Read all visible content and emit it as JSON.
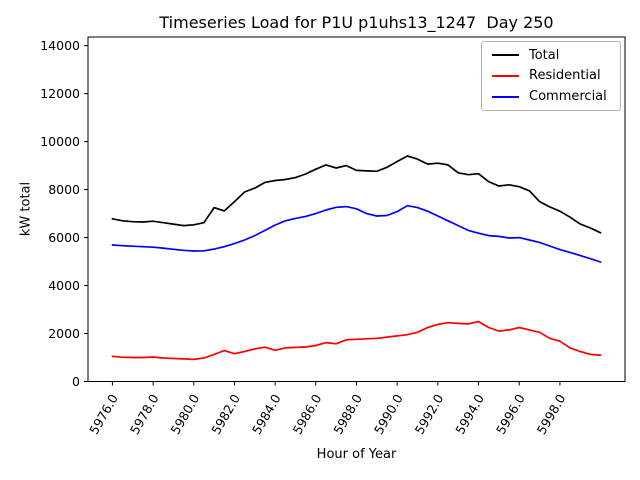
{
  "figure": {
    "background": "#ffffff"
  },
  "chart_data": {
    "type": "line",
    "title": "Timeseries Load for P1U p1uhs13_1247  Day 250",
    "xlabel": "Hour of Year",
    "ylabel": "kW total",
    "xlim": [
      5974.8,
      6001.2
    ],
    "ylim": [
      0,
      14360
    ],
    "grid": false,
    "legend_position": "upper right",
    "x_ticks": [
      5976,
      5978,
      5980,
      5982,
      5984,
      5986,
      5988,
      5990,
      5992,
      5994,
      5996,
      5998
    ],
    "x_tick_labels": [
      "5976.0",
      "5978.0",
      "5980.0",
      "5982.0",
      "5984.0",
      "5986.0",
      "5988.0",
      "5990.0",
      "5992.0",
      "5994.0",
      "5996.0",
      "5998.0"
    ],
    "x_tick_rotation_deg": 60,
    "y_ticks": [
      0,
      2000,
      4000,
      6000,
      8000,
      10000,
      12000,
      14000
    ],
    "y_tick_labels": [
      "0",
      "2000",
      "4000",
      "6000",
      "8000",
      "10000",
      "12000",
      "14000"
    ],
    "x": [
      5976.0,
      5976.5,
      5977.0,
      5977.5,
      5978.0,
      5978.5,
      5979.0,
      5979.5,
      5980.0,
      5980.5,
      5981.0,
      5981.5,
      5982.0,
      5982.5,
      5983.0,
      5983.5,
      5984.0,
      5984.5,
      5985.0,
      5985.5,
      5986.0,
      5986.5,
      5987.0,
      5987.5,
      5988.0,
      5988.5,
      5989.0,
      5989.5,
      5990.0,
      5990.5,
      5991.0,
      5991.5,
      5992.0,
      5992.5,
      5993.0,
      5993.5,
      5994.0,
      5994.5,
      5995.0,
      5995.5,
      5996.0,
      5996.5,
      5997.0,
      5997.5,
      5998.0,
      5998.5,
      5999.0,
      5999.5,
      6000.0
    ],
    "series": [
      {
        "name": "Total",
        "color": "#000000",
        "values": [
          6780,
          6700,
          6660,
          6650,
          6680,
          6620,
          6560,
          6500,
          6530,
          6620,
          7250,
          7110,
          7500,
          7900,
          8060,
          8300,
          8380,
          8420,
          8500,
          8650,
          8850,
          9030,
          8900,
          9000,
          8800,
          8780,
          8760,
          8930,
          9170,
          9400,
          9270,
          9060,
          9100,
          9030,
          8700,
          8620,
          8660,
          8330,
          8150,
          8200,
          8120,
          7950,
          7500,
          7280,
          7100,
          6850,
          6560,
          6400,
          6200
        ]
      },
      {
        "name": "Residential",
        "color": "#ff0000",
        "values": [
          1050,
          1010,
          1000,
          1000,
          1020,
          980,
          960,
          940,
          920,
          980,
          1130,
          1290,
          1160,
          1250,
          1360,
          1430,
          1300,
          1400,
          1420,
          1440,
          1500,
          1620,
          1570,
          1740,
          1760,
          1780,
          1800,
          1850,
          1900,
          1950,
          2050,
          2250,
          2380,
          2450,
          2420,
          2400,
          2500,
          2250,
          2100,
          2150,
          2250,
          2150,
          2050,
          1800,
          1680,
          1400,
          1250,
          1130,
          1100
        ]
      },
      {
        "name": "Commercial",
        "color": "#0000ff",
        "values": [
          5690,
          5660,
          5640,
          5620,
          5600,
          5560,
          5510,
          5470,
          5440,
          5450,
          5520,
          5620,
          5750,
          5900,
          6080,
          6300,
          6520,
          6700,
          6800,
          6880,
          7000,
          7150,
          7260,
          7290,
          7200,
          7000,
          6900,
          6920,
          7080,
          7330,
          7250,
          7100,
          6900,
          6700,
          6500,
          6300,
          6180,
          6080,
          6050,
          5980,
          6000,
          5900,
          5800,
          5650,
          5500,
          5380,
          5250,
          5120,
          4980
        ]
      }
    ]
  }
}
